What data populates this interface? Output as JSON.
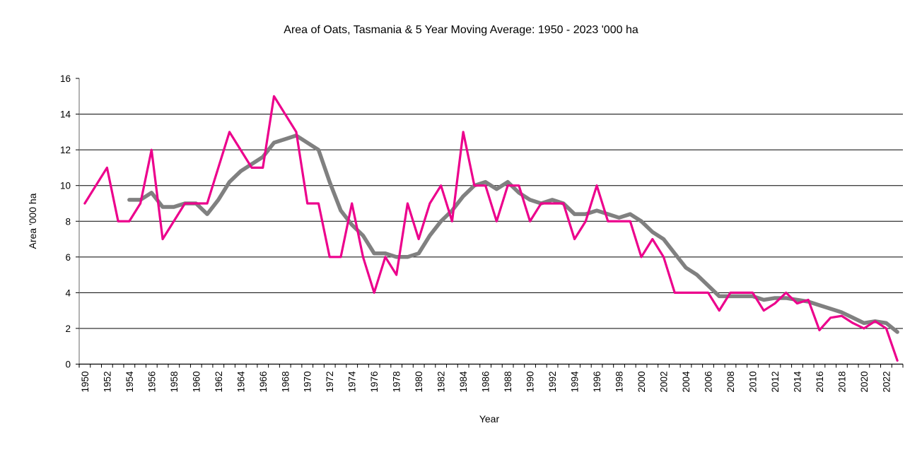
{
  "chart_data": {
    "type": "line",
    "title": "Area of Oats, Tasmania & 5 Year Moving Average: 1950 - 2023 '000 ha",
    "xlabel": "Year",
    "ylabel": "Area '000 ha",
    "ylim": [
      0,
      16
    ],
    "yticks": [
      0,
      2,
      4,
      6,
      8,
      10,
      12,
      14,
      16
    ],
    "grid": true,
    "legend": "none",
    "x": [
      1950,
      1951,
      1952,
      1953,
      1954,
      1955,
      1956,
      1957,
      1958,
      1959,
      1960,
      1961,
      1962,
      1963,
      1964,
      1965,
      1966,
      1967,
      1968,
      1969,
      1970,
      1971,
      1972,
      1973,
      1974,
      1975,
      1976,
      1977,
      1978,
      1979,
      1980,
      1981,
      1982,
      1983,
      1984,
      1985,
      1986,
      1987,
      1988,
      1989,
      1990,
      1991,
      1992,
      1993,
      1994,
      1995,
      1996,
      1997,
      1998,
      1999,
      2000,
      2001,
      2002,
      2003,
      2004,
      2005,
      2006,
      2007,
      2008,
      2009,
      2010,
      2011,
      2012,
      2013,
      2014,
      2015,
      2016,
      2017,
      2018,
      2019,
      2020,
      2021,
      2022,
      2023
    ],
    "xtick_labels": [
      "1950",
      "1952",
      "1954",
      "1956",
      "1958",
      "1960",
      "1962",
      "1964",
      "1966",
      "1968",
      "1970",
      "1972",
      "1974",
      "1976",
      "1978",
      "1980",
      "1982",
      "1984",
      "1986",
      "1988",
      "1990",
      "1992",
      "1994",
      "1996",
      "1998",
      "2000",
      "2002",
      "2004",
      "2006",
      "2008",
      "2010",
      "2012",
      "2014",
      "2016",
      "2018",
      "2020",
      "2022"
    ],
    "series": [
      {
        "name": "Area of Oats",
        "color": "#ec008c",
        "values": [
          9,
          10,
          11,
          8,
          8,
          9,
          12,
          7,
          8,
          9,
          9,
          9,
          11,
          13,
          12,
          11,
          11,
          15,
          14,
          13,
          9,
          9,
          6,
          6,
          9,
          6,
          4,
          6,
          5,
          9,
          7,
          9,
          10,
          8,
          13,
          10,
          10,
          8,
          10,
          10,
          8,
          9,
          9,
          9,
          7,
          8,
          10,
          8,
          8,
          8,
          6,
          7,
          6,
          4,
          4,
          4,
          4,
          3,
          4,
          4,
          4,
          3,
          3.4,
          4,
          3.4,
          3.6,
          1.9,
          2.6,
          2.7,
          2.3,
          2.0,
          2.4,
          2.0,
          0.2
        ]
      },
      {
        "name": "5 Year Moving Average",
        "color": "#808080",
        "values": [
          null,
          null,
          null,
          null,
          9.2,
          9.2,
          9.6,
          8.8,
          8.8,
          9.0,
          9.0,
          8.4,
          9.2,
          10.2,
          10.8,
          11.2,
          11.6,
          12.4,
          12.6,
          12.8,
          12.4,
          12.0,
          10.2,
          8.6,
          7.8,
          7.2,
          6.2,
          6.2,
          6.0,
          6.0,
          6.2,
          7.2,
          8.0,
          8.6,
          9.4,
          10.0,
          10.2,
          9.8,
          10.2,
          9.6,
          9.2,
          9.0,
          9.2,
          9.0,
          8.4,
          8.4,
          8.6,
          8.4,
          8.2,
          8.4,
          8.0,
          7.4,
          7.0,
          6.2,
          5.4,
          5.0,
          4.4,
          3.8,
          3.8,
          3.8,
          3.8,
          3.6,
          3.7,
          3.7,
          3.6,
          3.5,
          3.3,
          3.1,
          2.9,
          2.6,
          2.3,
          2.4,
          2.3,
          1.8
        ]
      }
    ]
  }
}
